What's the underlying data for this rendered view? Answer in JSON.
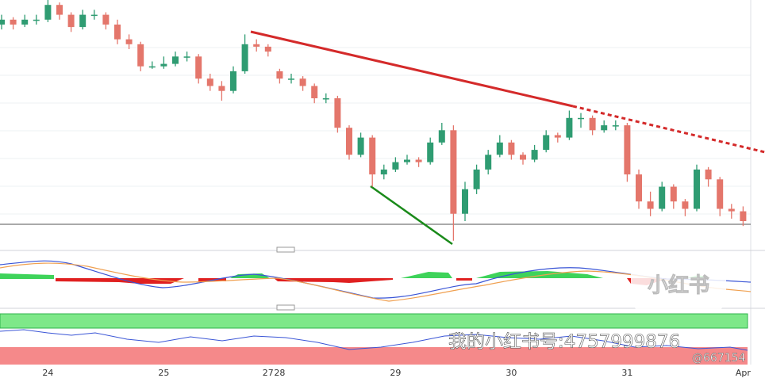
{
  "chart_data": {
    "type": "candlestick",
    "categories": [
      null,
      null,
      null,
      null,
      "24",
      null,
      null,
      null,
      null,
      null,
      null,
      null,
      null,
      null,
      "25",
      null,
      null,
      null,
      null,
      null,
      null,
      null,
      null,
      "27",
      "28",
      null,
      null,
      null,
      null,
      null,
      null,
      null,
      null,
      null,
      "29",
      null,
      null,
      null,
      null,
      null,
      null,
      null,
      null,
      null,
      "30",
      null,
      null,
      null,
      null,
      null,
      null,
      null,
      null,
      null,
      "31",
      null,
      null,
      null,
      null,
      null,
      null,
      null,
      null,
      null,
      "Apr"
    ],
    "ohlc": [
      [
        90,
        94,
        88,
        92
      ],
      [
        92,
        93,
        88,
        90
      ],
      [
        90,
        94,
        89,
        92
      ],
      [
        92,
        94,
        90,
        92
      ],
      [
        92,
        100,
        91,
        98
      ],
      [
        98,
        99,
        92,
        94
      ],
      [
        94,
        95,
        87,
        89
      ],
      [
        89,
        96,
        88,
        94
      ],
      [
        94,
        96,
        92,
        94
      ],
      [
        94,
        95,
        88,
        90
      ],
      [
        90,
        92,
        82,
        84
      ],
      [
        84,
        86,
        80,
        82
      ],
      [
        82,
        83,
        71,
        73
      ],
      [
        73,
        75,
        72,
        73
      ],
      [
        73,
        77,
        72,
        74
      ],
      [
        74,
        79,
        73,
        77
      ],
      [
        77,
        79,
        75,
        77
      ],
      [
        77,
        78,
        66,
        68
      ],
      [
        68,
        70,
        63,
        65
      ],
      [
        65,
        67,
        59,
        63
      ],
      [
        63,
        73,
        62,
        71
      ],
      [
        71,
        86,
        70,
        82
      ],
      [
        82,
        84,
        79,
        81
      ],
      [
        81,
        82,
        77,
        79
      ],
      [
        71,
        72,
        66,
        68
      ],
      [
        68,
        70,
        66,
        68
      ],
      [
        68,
        69,
        63,
        65
      ],
      [
        65,
        66,
        58,
        60
      ],
      [
        60,
        62,
        58,
        60
      ],
      [
        60,
        61,
        46,
        48
      ],
      [
        48,
        49,
        35,
        37
      ],
      [
        37,
        46,
        36,
        44
      ],
      [
        44,
        45,
        24,
        29
      ],
      [
        29,
        33,
        27,
        31
      ],
      [
        31,
        36,
        30,
        34
      ],
      [
        34,
        37,
        33,
        35
      ],
      [
        35,
        36,
        32,
        34
      ],
      [
        34,
        44,
        33,
        42
      ],
      [
        42,
        50,
        41,
        47
      ],
      [
        47,
        49,
        2,
        13
      ],
      [
        13,
        26,
        10,
        23
      ],
      [
        23,
        33,
        21,
        31
      ],
      [
        31,
        39,
        29,
        37
      ],
      [
        37,
        45,
        36,
        42
      ],
      [
        42,
        43,
        35,
        37
      ],
      [
        37,
        38,
        33,
        35
      ],
      [
        35,
        41,
        34,
        39
      ],
      [
        39,
        47,
        38,
        45
      ],
      [
        45,
        46,
        42,
        44
      ],
      [
        44,
        55,
        43,
        52
      ],
      [
        52,
        54,
        48,
        52
      ],
      [
        52,
        53,
        45,
        47
      ],
      [
        47,
        51,
        46,
        49
      ],
      [
        49,
        51,
        47,
        49
      ],
      [
        49,
        50,
        26,
        29
      ],
      [
        29,
        31,
        15,
        18
      ],
      [
        18,
        22,
        12,
        15
      ],
      [
        15,
        26,
        14,
        24
      ],
      [
        24,
        25,
        15,
        18
      ],
      [
        18,
        19,
        12,
        15
      ],
      [
        15,
        33,
        14,
        31
      ],
      [
        31,
        32,
        24,
        27
      ],
      [
        27,
        28,
        12,
        15
      ],
      [
        15,
        17,
        11,
        14
      ],
      [
        14,
        16,
        8,
        10
      ]
    ],
    "ylim": [
      0,
      100
    ],
    "up_color": "#2f9c72",
    "down_color": "#e4766b"
  },
  "watermark": {
    "logo": "小红书",
    "account": "我的小红书号:4757999876",
    "handle": "@667154"
  }
}
